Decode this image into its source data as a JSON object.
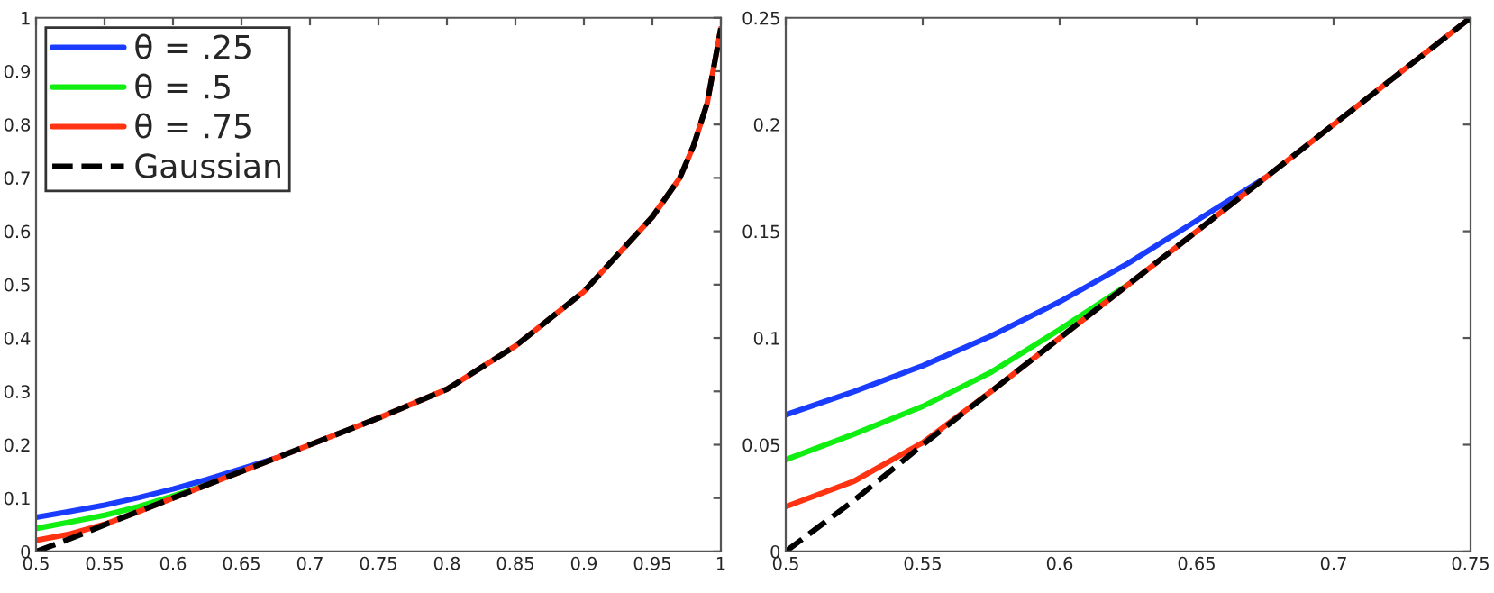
{
  "chart_data": [
    {
      "type": "line",
      "legend": "top left",
      "xlim": [
        0.5,
        1
      ],
      "ylim": [
        0,
        1
      ],
      "xticks": [
        0.5,
        0.55,
        0.6,
        0.65,
        0.7,
        0.75,
        0.8,
        0.85,
        0.9,
        0.95,
        1
      ],
      "yticks": [
        0,
        0.1,
        0.2,
        0.3,
        0.4,
        0.5,
        0.6,
        0.7,
        0.8,
        0.9,
        1
      ],
      "x": [
        0.5,
        0.525,
        0.55,
        0.575,
        0.6,
        0.625,
        0.65,
        0.675,
        0.7,
        0.75,
        0.8,
        0.85,
        0.9,
        0.95,
        0.97,
        0.98,
        0.99,
        1.0
      ],
      "series": [
        {
          "name": "θ = .25",
          "color": "#1a3cff",
          "line_style": "solid",
          "values": [
            0.064,
            0.075,
            0.087,
            0.101,
            0.117,
            0.135,
            0.155,
            0.175,
            null,
            null,
            null,
            null,
            null,
            null,
            null,
            null,
            null,
            null
          ]
        },
        {
          "name": "θ = .5",
          "color": "#11ee11",
          "line_style": "solid",
          "values": [
            0.043,
            0.055,
            0.068,
            0.084,
            0.104,
            0.125,
            null,
            null,
            null,
            null,
            null,
            null,
            null,
            null,
            null,
            null,
            null,
            null
          ]
        },
        {
          "name": "θ = .75",
          "color": "#ff3311",
          "line_style": "solid",
          "values": [
            0.021,
            0.033,
            0.051,
            0.075,
            0.1,
            0.125,
            0.15,
            0.175,
            0.2,
            0.25,
            0.304,
            0.385,
            0.487,
            0.627,
            0.7,
            0.76,
            0.84,
            0.98
          ]
        },
        {
          "name": "Gaussian",
          "color": "#000000",
          "line_style": "dashed",
          "values": [
            0,
            0.024,
            0.05,
            0.075,
            0.1,
            0.125,
            0.15,
            0.175,
            0.2,
            0.25,
            0.304,
            0.385,
            0.487,
            0.627,
            0.7,
            0.76,
            0.84,
            0.98
          ]
        }
      ]
    },
    {
      "type": "line",
      "xlim": [
        0.5,
        0.75
      ],
      "ylim": [
        0,
        0.25
      ],
      "xticks": [
        0.5,
        0.55,
        0.6,
        0.65,
        0.7,
        0.75
      ],
      "yticks": [
        0,
        0.05,
        0.1,
        0.15,
        0.2,
        0.25
      ],
      "x": [
        0.5,
        0.525,
        0.55,
        0.575,
        0.6,
        0.625,
        0.65,
        0.675,
        0.7,
        0.725,
        0.75
      ],
      "series": [
        {
          "color": "#1a3cff",
          "line_style": "solid",
          "values": [
            0.064,
            0.075,
            0.087,
            0.101,
            0.117,
            0.135,
            0.155,
            0.175,
            null,
            null,
            null
          ]
        },
        {
          "color": "#11ee11",
          "line_style": "solid",
          "values": [
            0.043,
            0.055,
            0.068,
            0.084,
            0.104,
            0.125,
            null,
            null,
            null,
            null,
            null
          ]
        },
        {
          "color": "#ff3311",
          "line_style": "solid",
          "values": [
            0.021,
            0.033,
            0.051,
            0.075,
            0.1,
            0.125,
            0.15,
            0.175,
            0.2,
            0.225,
            0.25
          ]
        },
        {
          "color": "#000000",
          "line_style": "dashed",
          "values": [
            0,
            0.024,
            0.05,
            0.075,
            0.1,
            0.125,
            0.15,
            0.175,
            0.2,
            0.225,
            0.25
          ]
        }
      ]
    }
  ]
}
